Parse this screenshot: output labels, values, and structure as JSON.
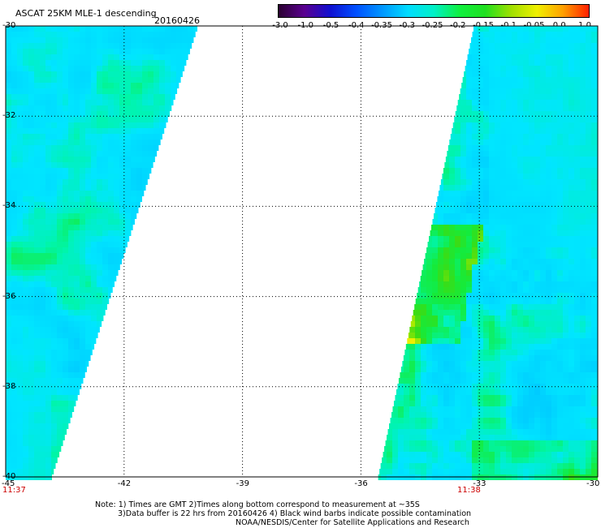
{
  "header": {
    "title": "ASCAT 25KM MLE-1 descending",
    "date": "20160426"
  },
  "colorbar": {
    "labels": [
      "-3.0",
      "-1.0",
      "-0.5",
      "-0.4",
      "-0.35",
      "-0.3",
      "-0.25",
      "-0.2",
      "-0.15",
      "-0.1",
      "-0.05",
      "0.0",
      "1.0"
    ],
    "colors": [
      "#2a0030",
      "#5a0090",
      "#1010d0",
      "#0050ff",
      "#0096ff",
      "#00dcff",
      "#00f0c8",
      "#10f040",
      "#20e020",
      "#a0e000",
      "#f0f000",
      "#ffa000",
      "#ff2000"
    ]
  },
  "axes": {
    "x_ticks": [
      "-45",
      "-42",
      "-39",
      "-36",
      "-33",
      "-30"
    ],
    "y_ticks": [
      "-30",
      "-32",
      "-34",
      "-36",
      "-38",
      "-40"
    ]
  },
  "times": {
    "left": "11:37",
    "right": "11:38"
  },
  "notes": {
    "line1": "Note: 1) Times are GMT 2)Times along bottom correspond to measurement at ~35S",
    "line2": "3)Data buffer is 22 hrs from 20160426 4) Black wind barbs indicate possible contamination",
    "line3": "NOAA/NESDIS/Center for Satellite Applications and Research"
  },
  "colors": {
    "background": "#ffffff",
    "time_label": "#cc0000",
    "grid": "#000000"
  }
}
